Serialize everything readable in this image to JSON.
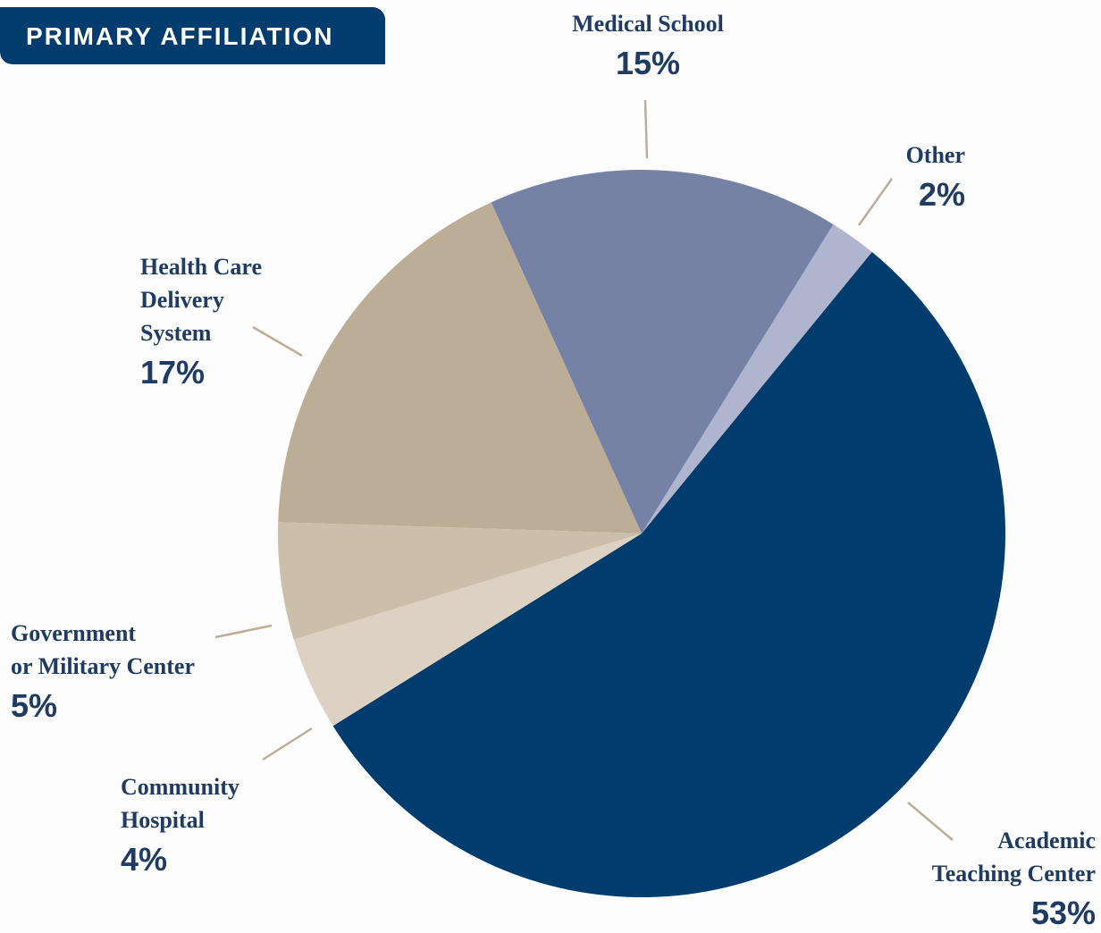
{
  "chart_data": {
    "type": "pie",
    "title": "PRIMARY AFFILIATION",
    "categories": [
      "Academic\nTeaching Center",
      "Community\nHospital",
      "Government\nor Military Center",
      "Health Care\nDelivery\nSystem",
      "Medical School",
      "Other"
    ],
    "values": [
      53,
      4,
      5,
      17,
      15,
      2
    ],
    "value_labels": [
      "53%",
      "4%",
      "5%",
      "17%",
      "15%",
      "2%"
    ],
    "colors": [
      "#003c6e",
      "#dcd1c2",
      "#cbbfab",
      "#bcad97",
      "#7682a5",
      "#b0b5cf"
    ]
  }
}
